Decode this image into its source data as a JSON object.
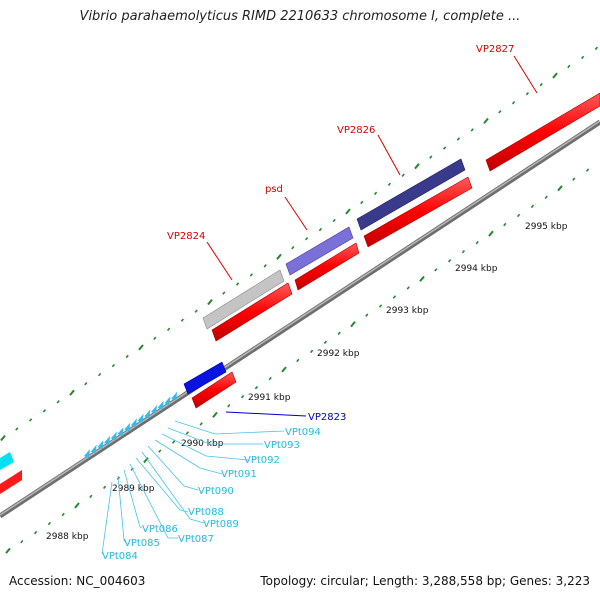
{
  "title": "Vibrio parahaemolyticus RIMD 2210633 chromosome I, complete ...",
  "footer": {
    "accession": "Accession: NC_004603",
    "summary": "Topology: circular; Length: 3,288,558 bp; Genes: 3,223"
  },
  "scale_labels": [
    "2988 kbp",
    "2989 kbp",
    "2990 kbp",
    "2991 kbp",
    "2992 kbp",
    "2993 kbp",
    "2994 kbp",
    "2995 kbp"
  ],
  "gene_labels": {
    "vp2827": "VP2827",
    "vp2826": "VP2826",
    "psd": "psd",
    "vp2824": "VP2824",
    "vp2823": "VP2823"
  },
  "trna_labels": [
    "VPt094",
    "VPt093",
    "VPt092",
    "VPt091",
    "VPt090",
    "VPt089",
    "VPt088",
    "VPt087",
    "VPt086",
    "VPt085",
    "VPt084"
  ],
  "colors": {
    "backbone": "#8c8c8c",
    "cds": "#ff0000",
    "gray_gene": "#c0c0c0",
    "purple_light": "#7b6fd8",
    "purple_dark": "#3a3a8c",
    "blue_gene": "#0a14e0",
    "trna": "#33bbee",
    "tick": "#22882a",
    "label_red": "#dd0000",
    "label_blue": "#0000cc",
    "label_cyan": "#22bbdd"
  }
}
